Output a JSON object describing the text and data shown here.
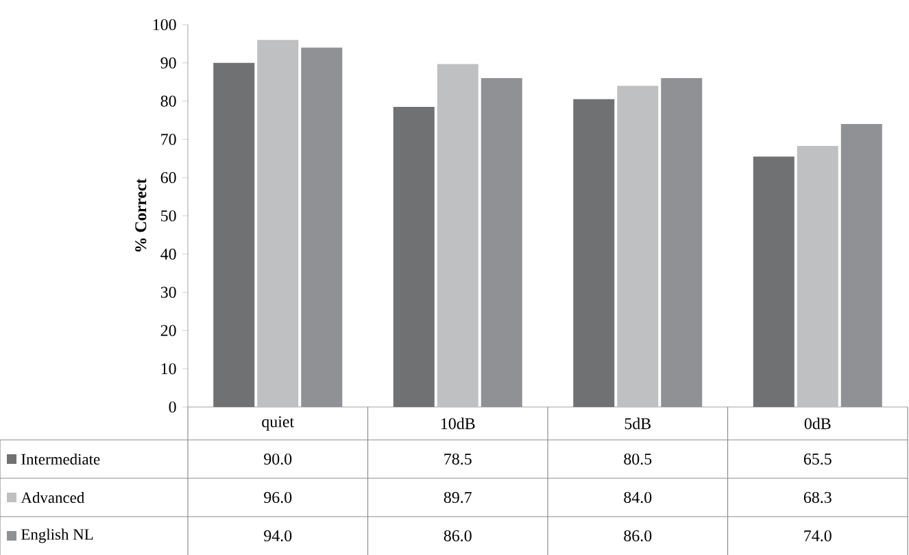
{
  "chart_data": {
    "type": "bar",
    "legend": "bottom left",
    "ylabel": "% Correct",
    "categories": [
      "quiet",
      "10dB",
      "5dB",
      "0dB"
    ],
    "ylim": [
      0,
      100
    ],
    "yticks": [
      0,
      10,
      20,
      30,
      40,
      50,
      60,
      70,
      80,
      90,
      100
    ],
    "series": [
      {
        "name": "Intermediate",
        "color": "#707173",
        "values": [
          90.0,
          78.5,
          80.5,
          65.5
        ],
        "value_labels": [
          "90.0",
          "78.5",
          "80.5",
          "65.5"
        ]
      },
      {
        "name": "Advanced",
        "color": "#bfc0c2",
        "values": [
          96.0,
          89.7,
          84.0,
          68.3
        ],
        "value_labels": [
          "96.0",
          "89.7",
          "84.0",
          "68.3"
        ]
      },
      {
        "name": "English NL",
        "color": "#909194",
        "values": [
          94.0,
          86.0,
          86.0,
          74.0
        ],
        "value_labels": [
          "94.0",
          "86.0",
          "86.0",
          "74.0"
        ]
      }
    ]
  }
}
